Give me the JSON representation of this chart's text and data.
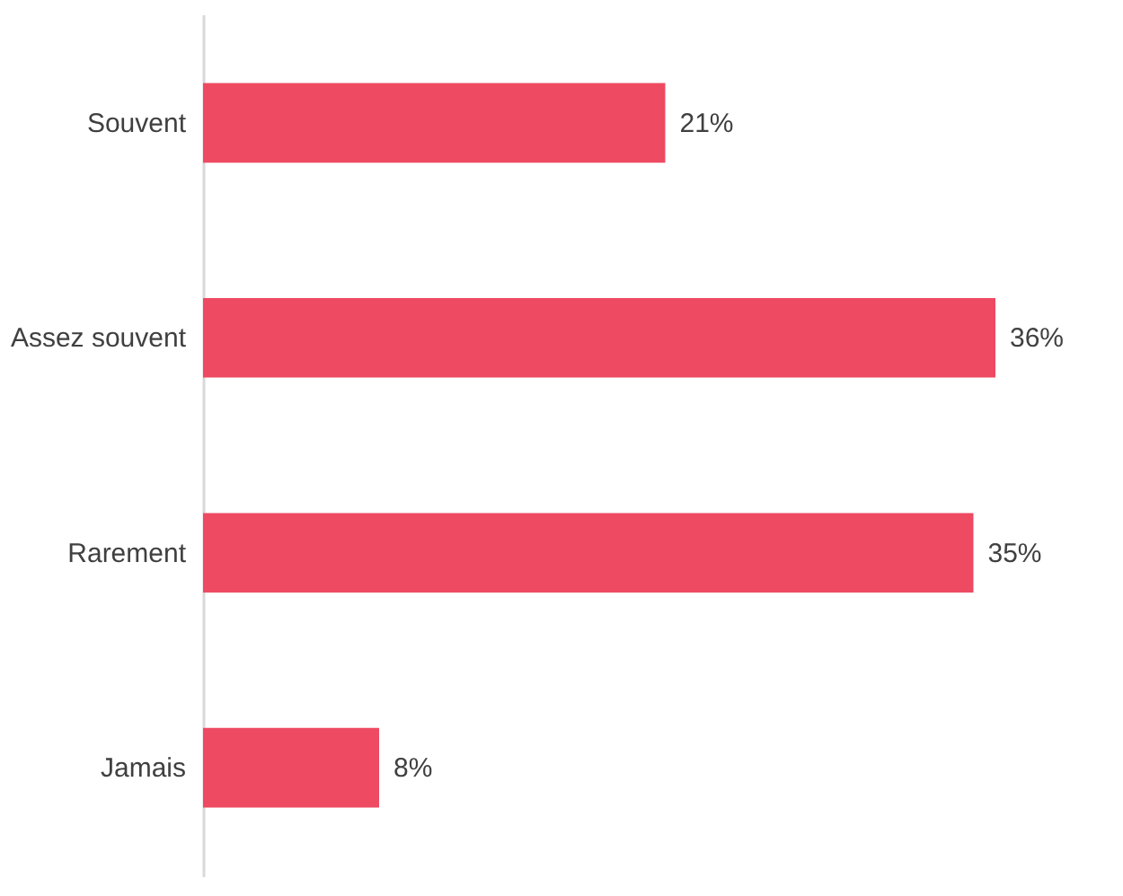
{
  "chart_data": {
    "type": "bar",
    "orientation": "horizontal",
    "categories": [
      "Souvent",
      "Assez souvent",
      "Rarement",
      "Jamais"
    ],
    "values": [
      21,
      36,
      35,
      8
    ],
    "value_labels": [
      "21%",
      "36%",
      "35%",
      "8%"
    ],
    "color": "#ee4a62"
  }
}
